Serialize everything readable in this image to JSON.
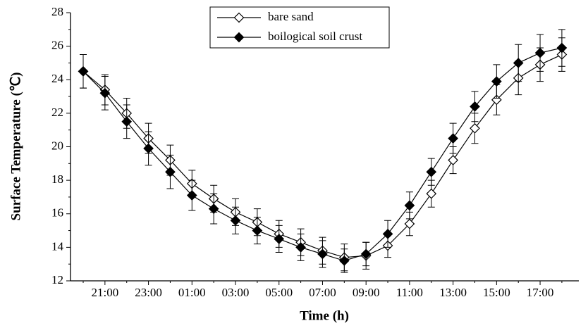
{
  "chart_data": {
    "type": "line",
    "xlabel": "Time (h)",
    "ylabel": "Surface Temperature (℃)",
    "categories": [
      null,
      "21:00",
      null,
      "23:00",
      null,
      "01:00",
      null,
      "03:00",
      null,
      "05:00",
      null,
      "07:00",
      null,
      "09:00",
      null,
      "11:00",
      null,
      "13:00",
      null,
      "15:00",
      null,
      "17:00",
      null
    ],
    "ylim": [
      12,
      28
    ],
    "yticks": [
      12,
      14,
      16,
      18,
      20,
      22,
      24,
      26,
      28
    ],
    "legend": "top",
    "series": [
      {
        "name": "bare sand",
        "color": "#000000",
        "marker": "open-diamond",
        "values": [
          24.5,
          23.4,
          22.0,
          20.5,
          19.2,
          17.8,
          16.9,
          16.1,
          15.5,
          14.8,
          14.3,
          13.8,
          13.4,
          13.5,
          14.1,
          15.4,
          17.2,
          19.2,
          21.1,
          22.8,
          24.1,
          24.9,
          25.5
        ],
        "errors": [
          1.0,
          0.9,
          0.9,
          0.9,
          0.9,
          0.8,
          0.8,
          0.8,
          0.8,
          0.8,
          0.8,
          0.8,
          0.8,
          0.8,
          0.7,
          0.7,
          0.8,
          0.8,
          0.9,
          0.9,
          1.0,
          1.0,
          1.0
        ]
      },
      {
        "name": "boilogical soil crust",
        "color": "#000000",
        "marker": "filled-diamond",
        "values": [
          24.5,
          23.2,
          21.5,
          19.9,
          18.5,
          17.1,
          16.3,
          15.6,
          15.0,
          14.5,
          14.0,
          13.6,
          13.2,
          13.6,
          14.8,
          16.5,
          18.5,
          20.5,
          22.4,
          23.9,
          25.0,
          25.6,
          25.9
        ],
        "errors": [
          1.0,
          1.0,
          1.0,
          1.0,
          1.0,
          0.9,
          0.9,
          0.8,
          0.8,
          0.8,
          0.8,
          0.8,
          0.7,
          0.7,
          0.8,
          0.8,
          0.8,
          0.9,
          0.9,
          1.0,
          1.1,
          1.1,
          1.1
        ]
      }
    ]
  }
}
